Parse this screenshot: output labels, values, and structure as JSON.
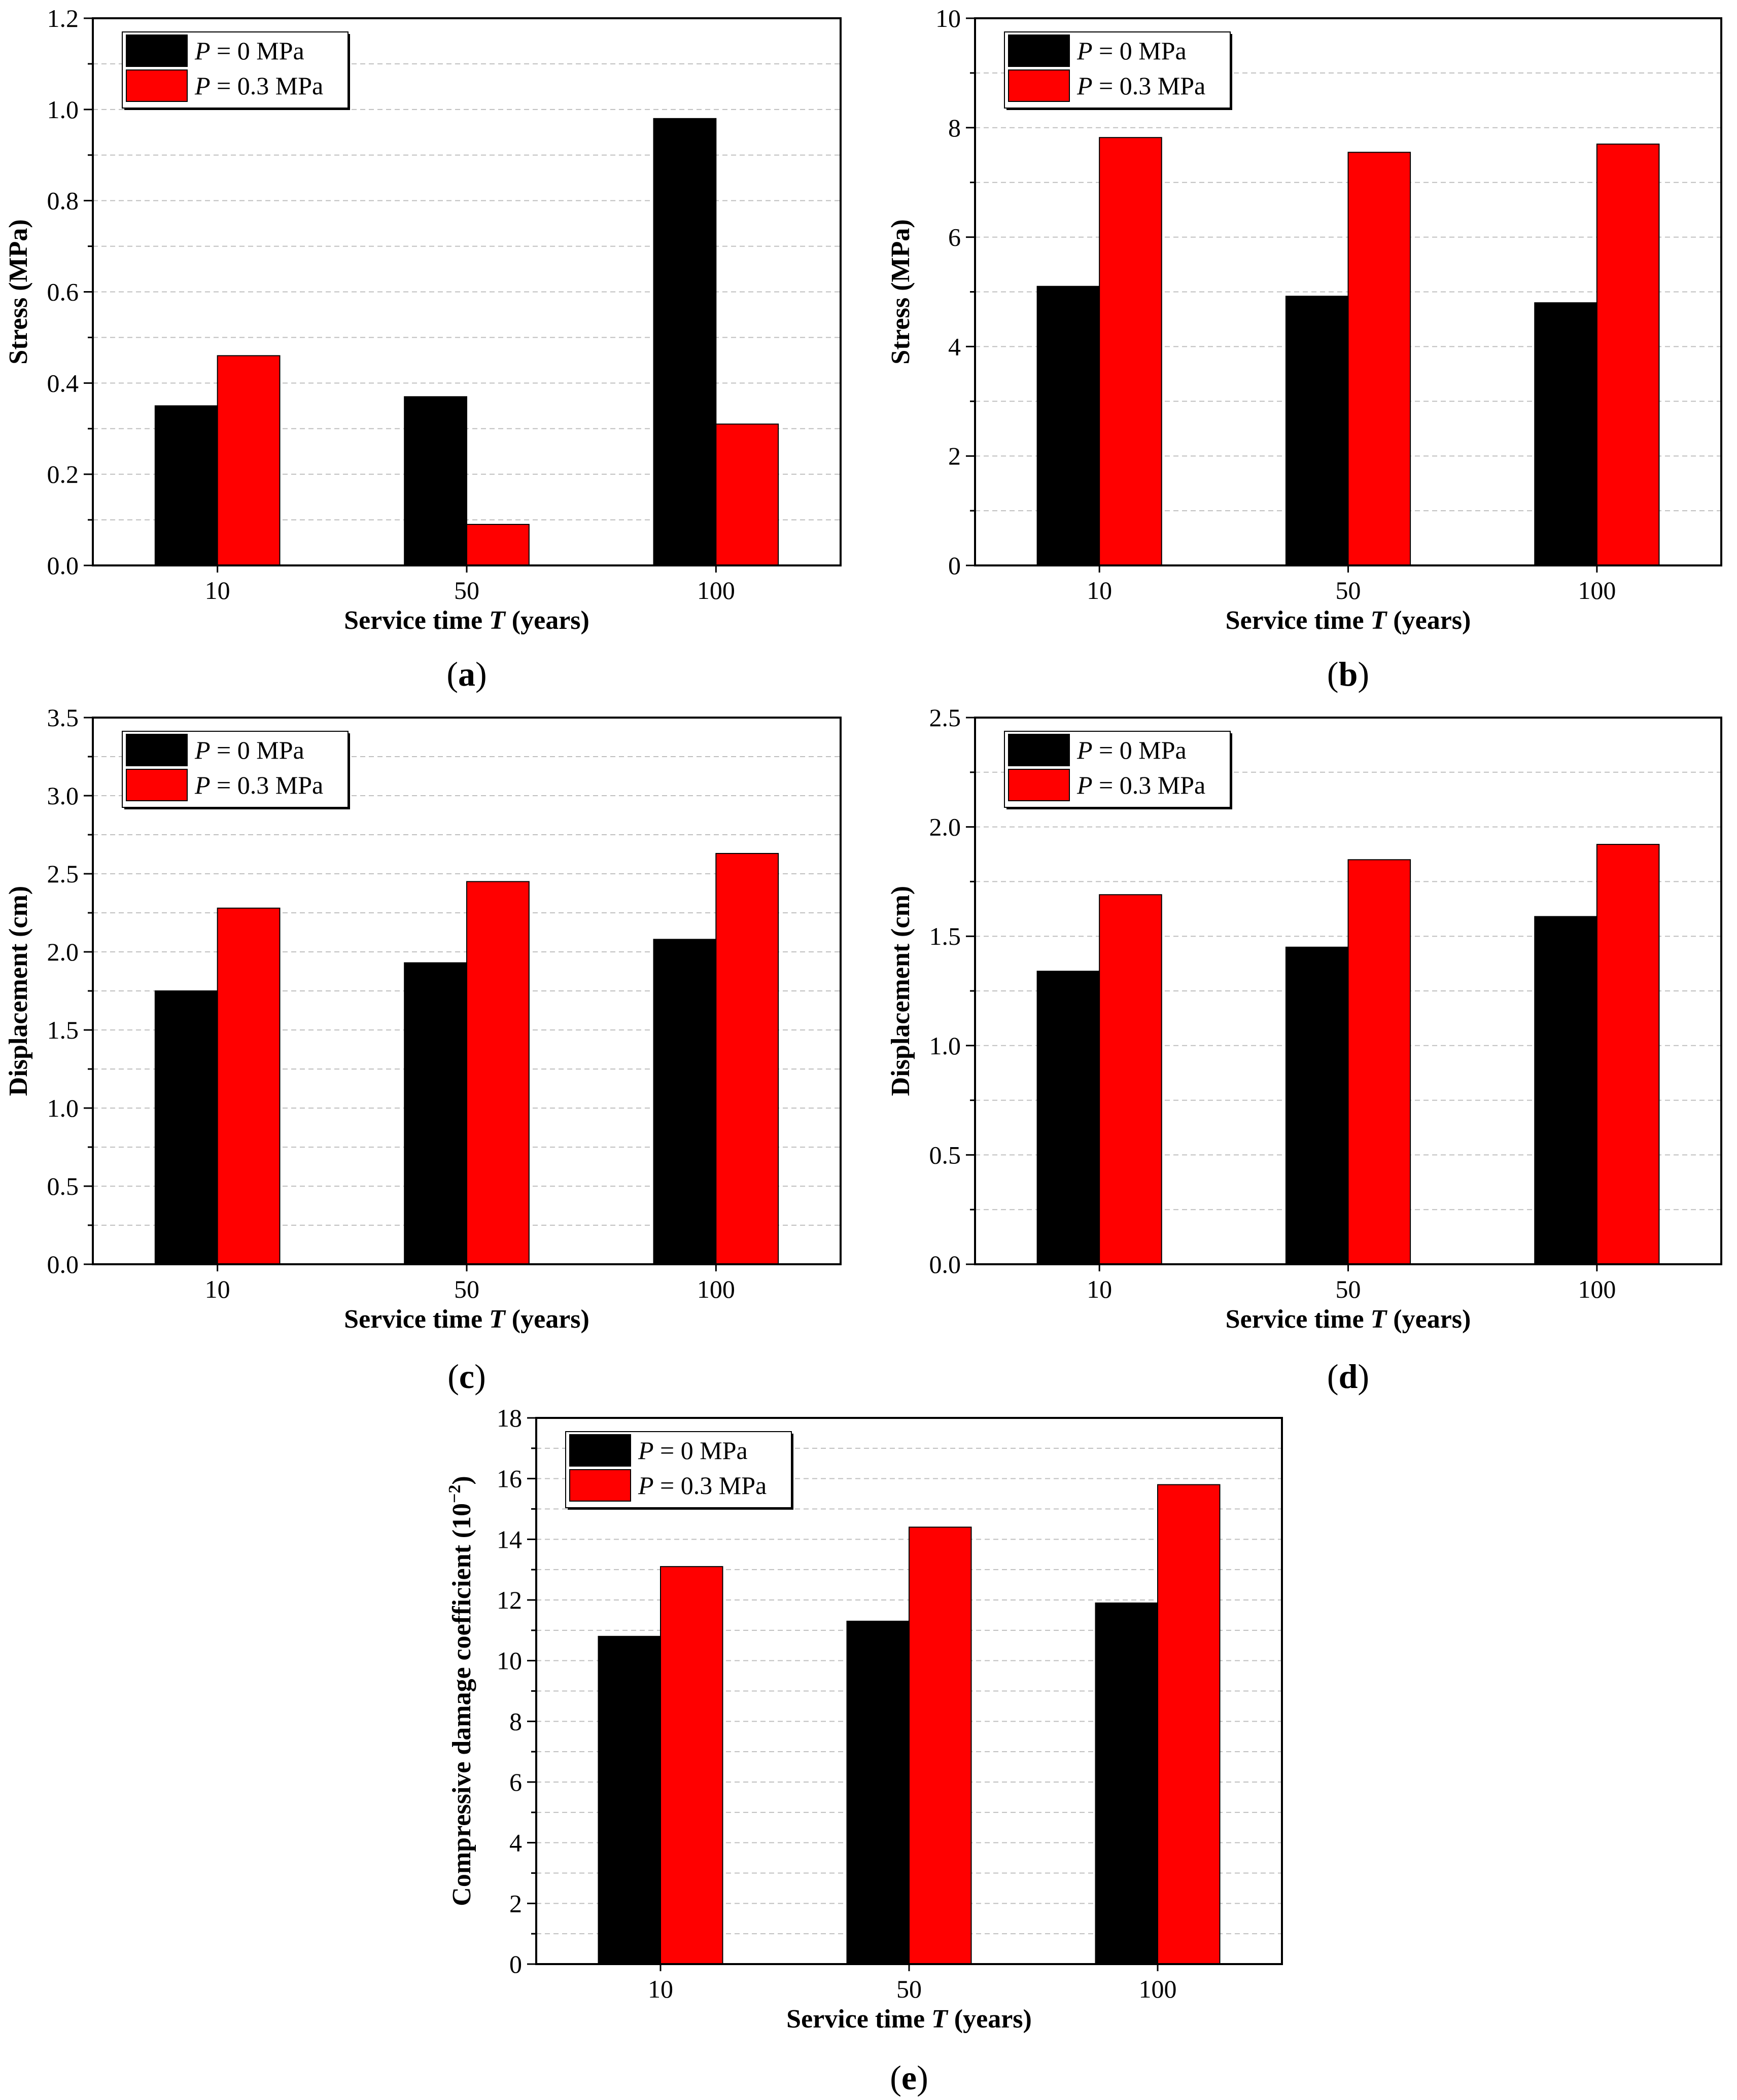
{
  "legend_prefix": "P",
  "colors": {
    "series_0": "#000000",
    "series_1": "#ff0000",
    "grid": "#bfbfbf",
    "axis": "#000000"
  },
  "chart_data": [
    {
      "type": "bar",
      "panel": "a",
      "categories": [
        "10",
        "50",
        "100"
      ],
      "series": [
        {
          "name": "P = 0 MPa",
          "legend_rest": " = 0 MPa",
          "values": [
            0.35,
            0.37,
            0.98
          ]
        },
        {
          "name": "P = 0.3 MPa",
          "legend_rest": " = 0.3 MPa",
          "values": [
            0.46,
            0.09,
            0.31
          ]
        }
      ],
      "ylim": [
        0,
        1.2
      ],
      "yticks": [
        "0.0",
        "0.2",
        "0.4",
        "0.6",
        "0.8",
        "1.0",
        "1.2"
      ],
      "ylabel": "Stress (MPa)",
      "xlabel_before": "Service time ",
      "xlabel_var": "T",
      "xlabel_after": " (years)",
      "grid": true,
      "legend_position": "top-left"
    },
    {
      "type": "bar",
      "panel": "b",
      "categories": [
        "10",
        "50",
        "100"
      ],
      "series": [
        {
          "name": "P = 0 MPa",
          "legend_rest": " = 0 MPa",
          "values": [
            5.1,
            4.92,
            4.8
          ]
        },
        {
          "name": "P = 0.3 MPa",
          "legend_rest": " = 0.3 MPa",
          "values": [
            7.82,
            7.55,
            7.7
          ]
        }
      ],
      "ylim": [
        0,
        10
      ],
      "yticks": [
        "0",
        "2",
        "4",
        "6",
        "8",
        "10"
      ],
      "ylabel": "Stress (MPa)",
      "xlabel_before": "Service time ",
      "xlabel_var": "T",
      "xlabel_after": " (years)",
      "grid": true,
      "legend_position": "top-left"
    },
    {
      "type": "bar",
      "panel": "c",
      "categories": [
        "10",
        "50",
        "100"
      ],
      "series": [
        {
          "name": "P = 0 MPa",
          "legend_rest": " = 0 MPa",
          "values": [
            1.75,
            1.93,
            2.08
          ]
        },
        {
          "name": "P = 0.3 MPa",
          "legend_rest": " = 0.3 MPa",
          "values": [
            2.28,
            2.45,
            2.63
          ]
        }
      ],
      "ylim": [
        0,
        3.5
      ],
      "yticks": [
        "0.0",
        "0.5",
        "1.0",
        "1.5",
        "2.0",
        "2.5",
        "3.0",
        "3.5"
      ],
      "ylabel": "Displacement (cm)",
      "xlabel_before": "Service time ",
      "xlabel_var": "T",
      "xlabel_after": " (years)",
      "grid": true,
      "legend_position": "top-left"
    },
    {
      "type": "bar",
      "panel": "d",
      "categories": [
        "10",
        "50",
        "100"
      ],
      "series": [
        {
          "name": "P = 0 MPa",
          "legend_rest": " = 0 MPa",
          "values": [
            1.34,
            1.45,
            1.59
          ]
        },
        {
          "name": "P = 0.3 MPa",
          "legend_rest": " = 0.3 MPa",
          "values": [
            1.69,
            1.85,
            1.92
          ]
        }
      ],
      "ylim": [
        0,
        2.5
      ],
      "yticks": [
        "0.0",
        "0.5",
        "1.0",
        "1.5",
        "2.0",
        "2.5"
      ],
      "ylabel": "Displacement (cm)",
      "xlabel_before": "Service time ",
      "xlabel_var": "T",
      "xlabel_after": " (years)",
      "grid": true,
      "legend_position": "top-left"
    },
    {
      "type": "bar",
      "panel": "e",
      "categories": [
        "10",
        "50",
        "100"
      ],
      "series": [
        {
          "name": "P = 0 MPa",
          "legend_rest": " = 0 MPa",
          "values": [
            10.8,
            11.3,
            11.9
          ]
        },
        {
          "name": "P = 0.3 MPa",
          "legend_rest": " = 0.3 MPa",
          "values": [
            13.1,
            14.4,
            15.8
          ]
        }
      ],
      "ylim": [
        0,
        18
      ],
      "yticks": [
        "0",
        "2",
        "4",
        "6",
        "8",
        "10",
        "12",
        "14",
        "16",
        "18"
      ],
      "ylabel": "Compressive damage coefficient (10",
      "ylabel_sup": "−2",
      "ylabel_end": ")",
      "xlabel_before": "Service time ",
      "xlabel_var": "T",
      "xlabel_after": " (years)",
      "grid": true,
      "legend_position": "top-left"
    }
  ]
}
